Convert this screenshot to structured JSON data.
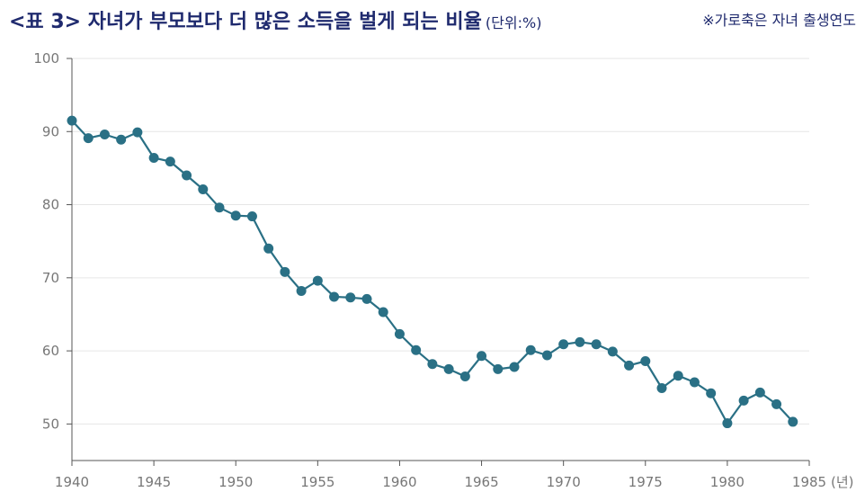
{
  "header": {
    "title": "<표 3> 자녀가 부모보다 더 많은 소득을 벌게 되는 비율",
    "unit": "(단위:%)",
    "note": "※가로축은 자녀 출생연도"
  },
  "colors": {
    "title": "#1f2a6e",
    "series": "#2a7085",
    "grid": "#e6e6e6",
    "axis": "#555555"
  },
  "chart_data": {
    "type": "line",
    "x": [
      1940,
      1941,
      1942,
      1943,
      1944,
      1945,
      1946,
      1947,
      1948,
      1949,
      1950,
      1951,
      1952,
      1953,
      1954,
      1955,
      1956,
      1957,
      1958,
      1959,
      1960,
      1961,
      1962,
      1963,
      1964,
      1965,
      1966,
      1967,
      1968,
      1969,
      1970,
      1971,
      1972,
      1973,
      1974,
      1975,
      1976,
      1977,
      1978,
      1979,
      1980,
      1981,
      1982,
      1983,
      1984
    ],
    "series": [
      {
        "values": [
          91.5,
          89.1,
          89.6,
          88.9,
          89.9,
          86.4,
          85.9,
          84.0,
          82.1,
          79.6,
          78.5,
          78.4,
          74.0,
          70.8,
          68.2,
          69.6,
          67.4,
          67.3,
          67.1,
          65.3,
          62.3,
          60.1,
          58.2,
          57.5,
          56.5,
          59.3,
          57.5,
          57.8,
          60.1,
          59.4,
          60.9,
          61.2,
          60.9,
          59.9,
          58.0,
          58.6,
          54.9,
          56.6,
          55.7,
          54.2,
          50.1,
          53.2,
          54.3,
          52.7,
          50.3
        ]
      }
    ],
    "xlim": [
      1940,
      1985
    ],
    "ylim": [
      45,
      100
    ],
    "xticks": [
      1940,
      1945,
      1950,
      1955,
      1960,
      1965,
      1970,
      1975,
      1980,
      1985
    ],
    "yticks": [
      50,
      60,
      70,
      80,
      90,
      100
    ],
    "xunit": "(년)",
    "grid": true,
    "legend": "none"
  }
}
